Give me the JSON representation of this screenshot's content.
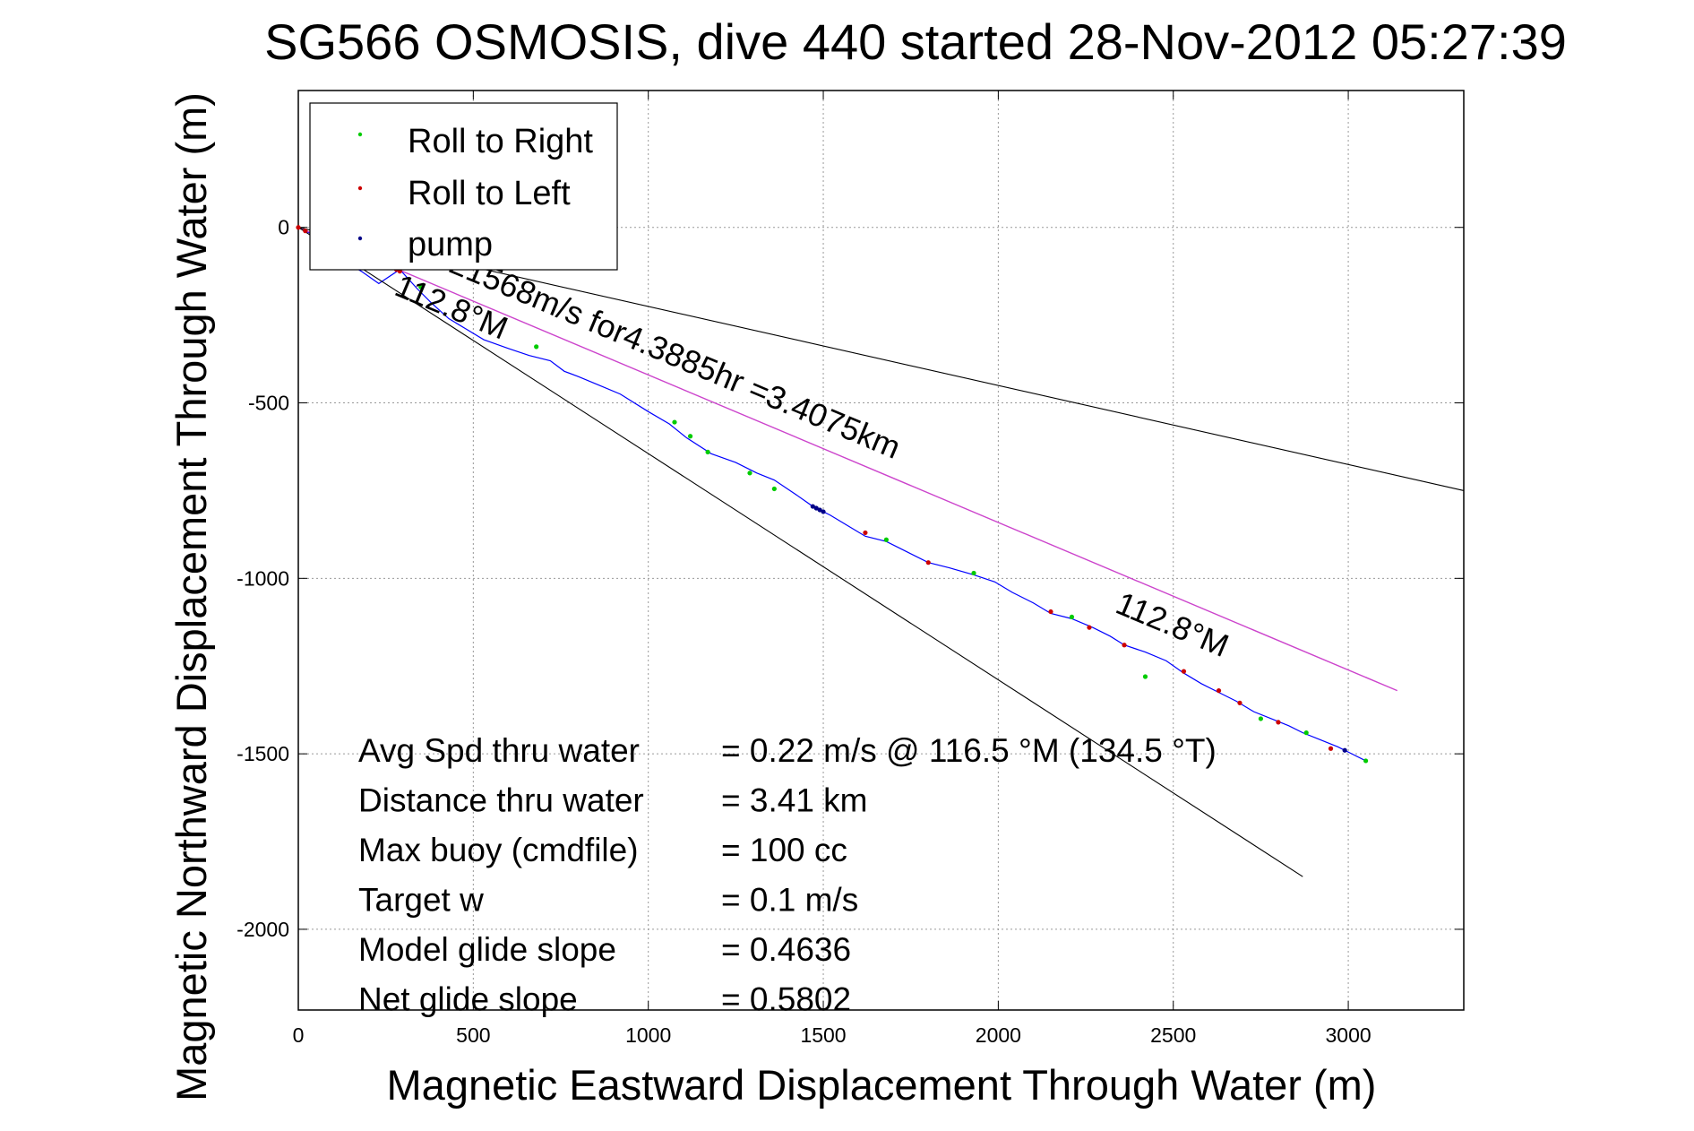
{
  "chart_data": {
    "type": "line",
    "title": "SG566 OSMOSIS, dive 440 started 28-Nov-2012 05:27:39",
    "xlabel": "Magnetic Eastward Displacement Through Water (m)",
    "ylabel": "Magnetic Northward Displacement Through Water (m)",
    "xlim": [
      0,
      3330
    ],
    "ylim": [
      -2230,
      390
    ],
    "xticks": [
      0,
      500,
      1000,
      1500,
      2000,
      2500,
      3000
    ],
    "yticks": [
      0,
      -500,
      -1000,
      -1500,
      -2000
    ],
    "xtick_labels": [
      "0",
      "500",
      "1000",
      "1500",
      "2000",
      "2500",
      "3000"
    ],
    "ytick_labels": [
      "0",
      "-500",
      "-1000",
      "-1500",
      "-2000"
    ],
    "grid": true,
    "legend_position": "top-left",
    "legend": [
      {
        "label": "Roll to Right",
        "color": "#00dd00"
      },
      {
        "label": "Roll to Left",
        "color": "#dd0000"
      },
      {
        "label": "pump",
        "color": "#000088"
      }
    ],
    "series": [
      {
        "kind": "track",
        "color": "#0000ff",
        "x": [
          0,
          40,
          80,
          130,
          180,
          230,
          290,
          340,
          380,
          430,
          480,
          530,
          600,
          660,
          720,
          760,
          800,
          860,
          920,
          1000,
          1060,
          1110,
          1180,
          1250,
          1310,
          1360,
          1420,
          1470,
          1520,
          1570,
          1620,
          1680,
          1740,
          1800,
          1860,
          1930,
          1990,
          2040,
          2100,
          2150,
          2210,
          2270,
          2320,
          2360,
          2420,
          2480,
          2530,
          2580,
          2630,
          2680,
          2730,
          2780,
          2830,
          2870,
          2920,
          2970,
          3010,
          3050
        ],
        "y": [
          0,
          -20,
          -55,
          -95,
          -125,
          -160,
          -120,
          -175,
          -215,
          -260,
          -290,
          -320,
          -345,
          -365,
          -380,
          -410,
          -425,
          -450,
          -475,
          -525,
          -560,
          -600,
          -645,
          -670,
          -700,
          -720,
          -760,
          -795,
          -820,
          -850,
          -880,
          -895,
          -925,
          -955,
          -970,
          -990,
          -1010,
          -1040,
          -1070,
          -1100,
          -1115,
          -1140,
          -1165,
          -1190,
          -1210,
          -1235,
          -1270,
          -1300,
          -1325,
          -1350,
          -1380,
          -1400,
          -1420,
          -1440,
          -1460,
          -1480,
          -1500,
          -1520
        ]
      },
      {
        "kind": "roll_right",
        "color": "#00cc00",
        "x": [
          350,
          680,
          1075,
          1120,
          1170,
          1290,
          1360,
          1680,
          1930,
          2210,
          2420,
          2750,
          2880,
          3050
        ],
        "y": [
          -170,
          -340,
          -555,
          -595,
          -640,
          -700,
          -745,
          -890,
          -985,
          -1110,
          -1280,
          -1400,
          -1440,
          -1520
        ]
      },
      {
        "kind": "roll_left",
        "color": "#cc0000",
        "x": [
          0,
          20,
          280,
          290,
          1620,
          1800,
          2150,
          2260,
          2360,
          2530,
          2630,
          2690,
          2800,
          2950
        ],
        "y": [
          0,
          -10,
          -120,
          -125,
          -870,
          -955,
          -1095,
          -1140,
          -1190,
          -1265,
          -1320,
          -1355,
          -1410,
          -1485
        ]
      },
      {
        "kind": "pump",
        "color": "#000088",
        "x": [
          1470,
          1480,
          1490,
          1500,
          2990
        ],
        "y": [
          -795,
          -800,
          -805,
          -810,
          -1490
        ]
      },
      {
        "kind": "avg_velocity",
        "color": "#cc44cc",
        "x": [
          0,
          3140
        ],
        "y": [
          0,
          -1320
        ]
      },
      {
        "kind": "bearing_line",
        "color": "#000000",
        "x": [
          0,
          3330
        ],
        "y": [
          0,
          -750
        ]
      },
      {
        "kind": "bearing_line",
        "color": "#000000",
        "x": [
          0,
          2870
        ],
        "y": [
          0,
          -1850
        ]
      }
    ],
    "annotations": [
      {
        "text": "0.21568m/s for4.3885hr =3.4075km",
        "x": 355,
        "y": -95,
        "angle": 22.8
      },
      {
        "text": "112.8°M",
        "x": 270,
        "y": -190,
        "angle": 22.8
      },
      {
        "text": "112.8°M",
        "x": 2330,
        "y": -1095,
        "angle": 22.8
      }
    ],
    "stats": [
      {
        "label": "Avg Spd thru water",
        "value": "=  0.22 m/s @ 116.5 °M (134.5 °T)"
      },
      {
        "label": "Distance thru water",
        "value": "=  3.41 km"
      },
      {
        "label": "Max buoy (cmdfile)",
        "value": "= 100 cc"
      },
      {
        "label": "Target w",
        "value": "= 0.1 m/s"
      },
      {
        "label": "Model glide slope",
        "value": "= 0.4636"
      },
      {
        "label": "Net glide slope",
        "value": "= 0.5802"
      }
    ]
  }
}
